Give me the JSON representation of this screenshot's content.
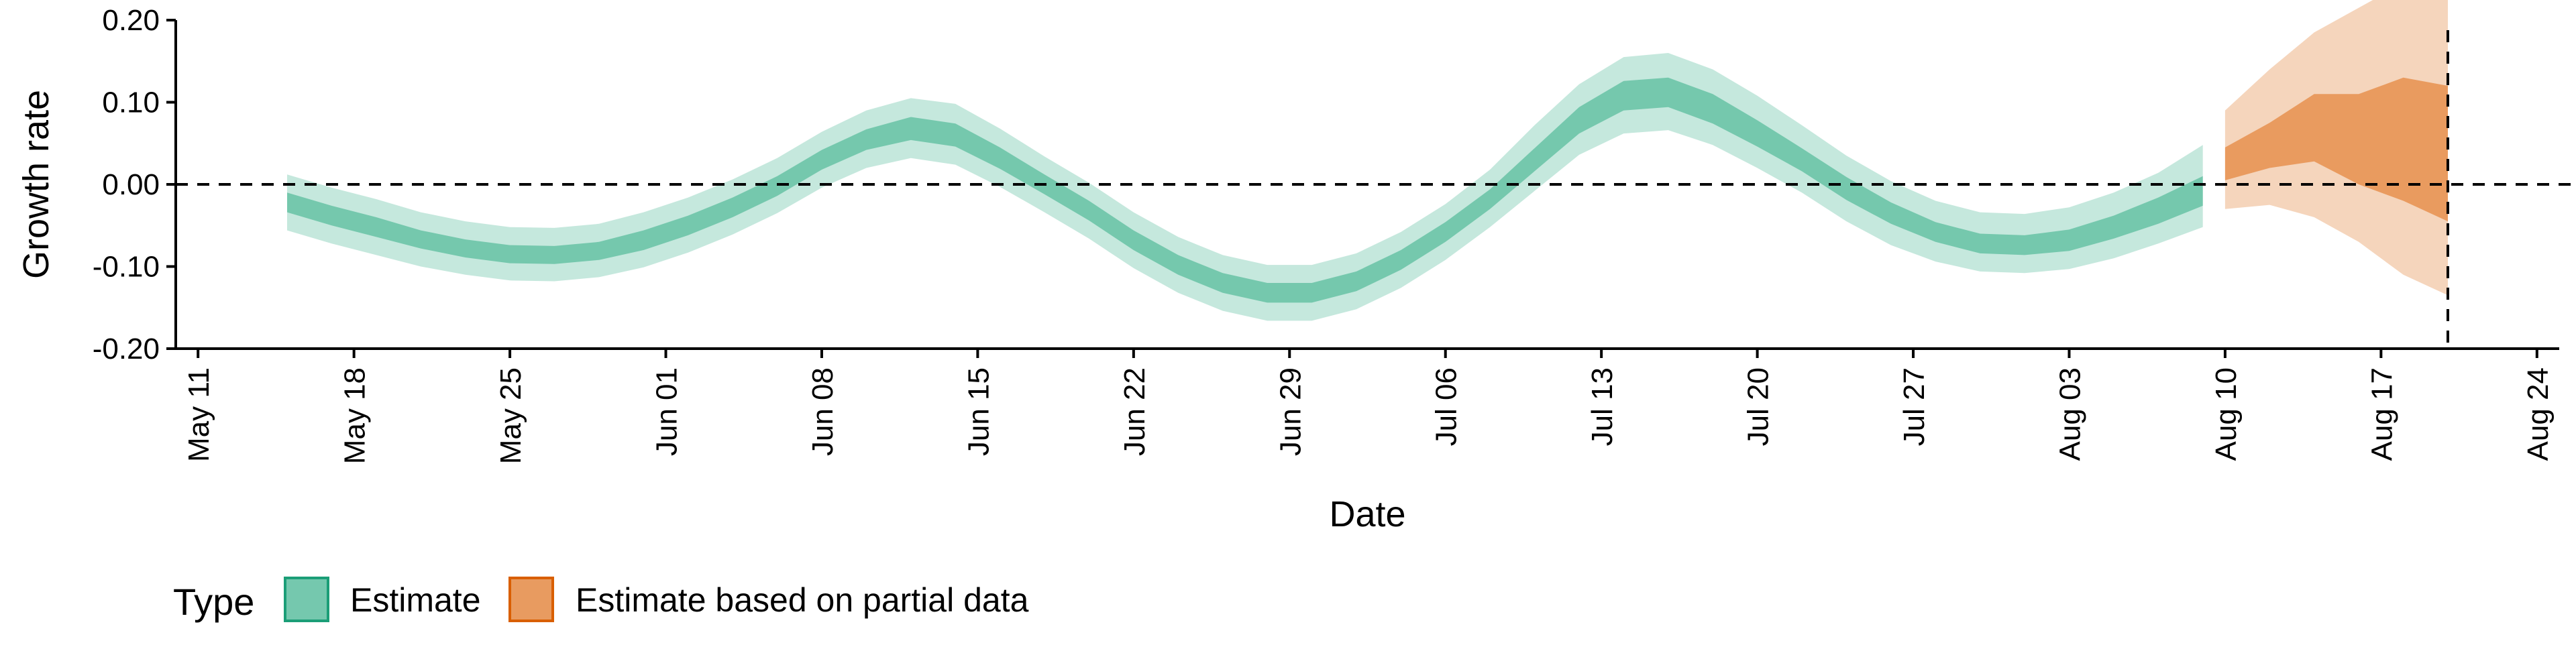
{
  "chart_data": {
    "type": "area",
    "xlabel": "Date",
    "ylabel": "Growth rate",
    "x_axis": {
      "type": "date",
      "range": [
        "2020-05-10",
        "2020-08-25"
      ],
      "ticks": [
        {
          "date": "2020-05-11",
          "label": "May 11"
        },
        {
          "date": "2020-05-18",
          "label": "May 18"
        },
        {
          "date": "2020-05-25",
          "label": "May 25"
        },
        {
          "date": "2020-06-01",
          "label": "Jun 01"
        },
        {
          "date": "2020-06-08",
          "label": "Jun 08"
        },
        {
          "date": "2020-06-15",
          "label": "Jun 15"
        },
        {
          "date": "2020-06-22",
          "label": "Jun 22"
        },
        {
          "date": "2020-06-29",
          "label": "Jun 29"
        },
        {
          "date": "2020-07-06",
          "label": "Jul 06"
        },
        {
          "date": "2020-07-13",
          "label": "Jul 13"
        },
        {
          "date": "2020-07-20",
          "label": "Jul 20"
        },
        {
          "date": "2020-07-27",
          "label": "Jul 27"
        },
        {
          "date": "2020-08-03",
          "label": "Aug 03"
        },
        {
          "date": "2020-08-10",
          "label": "Aug 10"
        },
        {
          "date": "2020-08-17",
          "label": "Aug 17"
        },
        {
          "date": "2020-08-24",
          "label": "Aug 24"
        }
      ]
    },
    "y_axis": {
      "range": [
        -0.2,
        0.2
      ],
      "ticks": [
        {
          "value": 0.2,
          "label": "0.20"
        },
        {
          "value": 0.1,
          "label": "0.10"
        },
        {
          "value": 0.0,
          "label": "0.00"
        },
        {
          "value": -0.1,
          "label": "-0.10"
        },
        {
          "value": -0.2,
          "label": "-0.20"
        }
      ]
    },
    "reference_lines": {
      "horizontal_y": 0.0,
      "vertical_date": "2020-08-20"
    },
    "grid": false,
    "legend": {
      "position": "bottom-left",
      "title": "Type",
      "items": [
        {
          "label": "Estimate",
          "color": "#66c2a5"
        },
        {
          "label": "Estimate based on partial data",
          "color": "#e6904f"
        }
      ]
    },
    "series": [
      {
        "name": "Estimate",
        "color": "#66c2a5",
        "x": [
          "2020-05-15",
          "2020-05-17",
          "2020-05-19",
          "2020-05-21",
          "2020-05-23",
          "2020-05-25",
          "2020-05-27",
          "2020-05-29",
          "2020-05-31",
          "2020-06-02",
          "2020-06-04",
          "2020-06-06",
          "2020-06-08",
          "2020-06-10",
          "2020-06-12",
          "2020-06-14",
          "2020-06-16",
          "2020-06-18",
          "2020-06-20",
          "2020-06-22",
          "2020-06-24",
          "2020-06-26",
          "2020-06-28",
          "2020-06-30",
          "2020-07-02",
          "2020-07-04",
          "2020-07-06",
          "2020-07-08",
          "2020-07-10",
          "2020-07-12",
          "2020-07-14",
          "2020-07-16",
          "2020-07-18",
          "2020-07-20",
          "2020-07-22",
          "2020-07-24",
          "2020-07-26",
          "2020-07-28",
          "2020-07-30",
          "2020-08-01",
          "2020-08-03",
          "2020-08-05",
          "2020-08-07",
          "2020-08-09"
        ],
        "median": [
          -0.022,
          -0.038,
          -0.052,
          -0.067,
          -0.078,
          -0.085,
          -0.086,
          -0.081,
          -0.068,
          -0.05,
          -0.028,
          -0.002,
          0.03,
          0.055,
          0.068,
          0.06,
          0.032,
          0.0,
          -0.032,
          -0.068,
          -0.098,
          -0.12,
          -0.132,
          -0.132,
          -0.118,
          -0.092,
          -0.058,
          -0.018,
          0.03,
          0.078,
          0.108,
          0.112,
          0.092,
          0.062,
          0.03,
          -0.005,
          -0.035,
          -0.058,
          -0.072,
          -0.074,
          -0.068,
          -0.052,
          -0.032,
          -0.008
        ],
        "inner_low": [
          -0.034,
          -0.05,
          -0.064,
          -0.078,
          -0.089,
          -0.096,
          -0.097,
          -0.092,
          -0.08,
          -0.062,
          -0.04,
          -0.014,
          0.018,
          0.042,
          0.054,
          0.046,
          0.019,
          -0.012,
          -0.044,
          -0.08,
          -0.11,
          -0.132,
          -0.144,
          -0.144,
          -0.13,
          -0.104,
          -0.07,
          -0.03,
          0.016,
          0.062,
          0.09,
          0.094,
          0.074,
          0.046,
          0.016,
          -0.019,
          -0.048,
          -0.07,
          -0.084,
          -0.086,
          -0.081,
          -0.066,
          -0.048,
          -0.026
        ],
        "inner_high": [
          -0.01,
          -0.026,
          -0.04,
          -0.056,
          -0.067,
          -0.074,
          -0.075,
          -0.07,
          -0.056,
          -0.038,
          -0.016,
          0.01,
          0.042,
          0.067,
          0.082,
          0.074,
          0.045,
          0.012,
          -0.02,
          -0.056,
          -0.086,
          -0.108,
          -0.12,
          -0.12,
          -0.106,
          -0.08,
          -0.046,
          -0.006,
          0.044,
          0.094,
          0.126,
          0.13,
          0.11,
          0.078,
          0.044,
          0.009,
          -0.022,
          -0.046,
          -0.06,
          -0.062,
          -0.055,
          -0.038,
          -0.016,
          0.01
        ],
        "outer_low": [
          -0.056,
          -0.072,
          -0.086,
          -0.1,
          -0.11,
          -0.117,
          -0.118,
          -0.113,
          -0.101,
          -0.083,
          -0.061,
          -0.035,
          -0.004,
          0.02,
          0.032,
          0.024,
          -0.003,
          -0.034,
          -0.066,
          -0.102,
          -0.132,
          -0.154,
          -0.166,
          -0.166,
          -0.152,
          -0.126,
          -0.092,
          -0.052,
          -0.008,
          0.036,
          0.062,
          0.066,
          0.048,
          0.02,
          -0.01,
          -0.045,
          -0.074,
          -0.094,
          -0.106,
          -0.108,
          -0.103,
          -0.09,
          -0.072,
          -0.052
        ],
        "outer_high": [
          0.012,
          -0.004,
          -0.018,
          -0.034,
          -0.045,
          -0.052,
          -0.053,
          -0.048,
          -0.034,
          -0.016,
          0.006,
          0.032,
          0.064,
          0.09,
          0.105,
          0.098,
          0.068,
          0.034,
          0.002,
          -0.034,
          -0.064,
          -0.086,
          -0.098,
          -0.098,
          -0.084,
          -0.058,
          -0.024,
          0.018,
          0.072,
          0.122,
          0.155,
          0.16,
          0.14,
          0.108,
          0.072,
          0.035,
          0.004,
          -0.02,
          -0.034,
          -0.036,
          -0.028,
          -0.01,
          0.014,
          0.048
        ]
      },
      {
        "name": "Estimate based on partial data",
        "color": "#e6904f",
        "x": [
          "2020-08-10",
          "2020-08-12",
          "2020-08-14",
          "2020-08-16",
          "2020-08-18",
          "2020-08-20"
        ],
        "median": [
          0.025,
          0.045,
          0.065,
          0.055,
          0.06,
          0.05
        ],
        "inner_low": [
          0.005,
          0.02,
          0.028,
          0.0,
          -0.02,
          -0.045
        ],
        "inner_high": [
          0.045,
          0.075,
          0.11,
          0.11,
          0.13,
          0.12
        ],
        "outer_low": [
          -0.03,
          -0.025,
          -0.04,
          -0.07,
          -0.11,
          -0.135
        ],
        "outer_high": [
          0.09,
          0.14,
          0.185,
          0.215,
          0.245,
          0.27
        ]
      }
    ]
  }
}
